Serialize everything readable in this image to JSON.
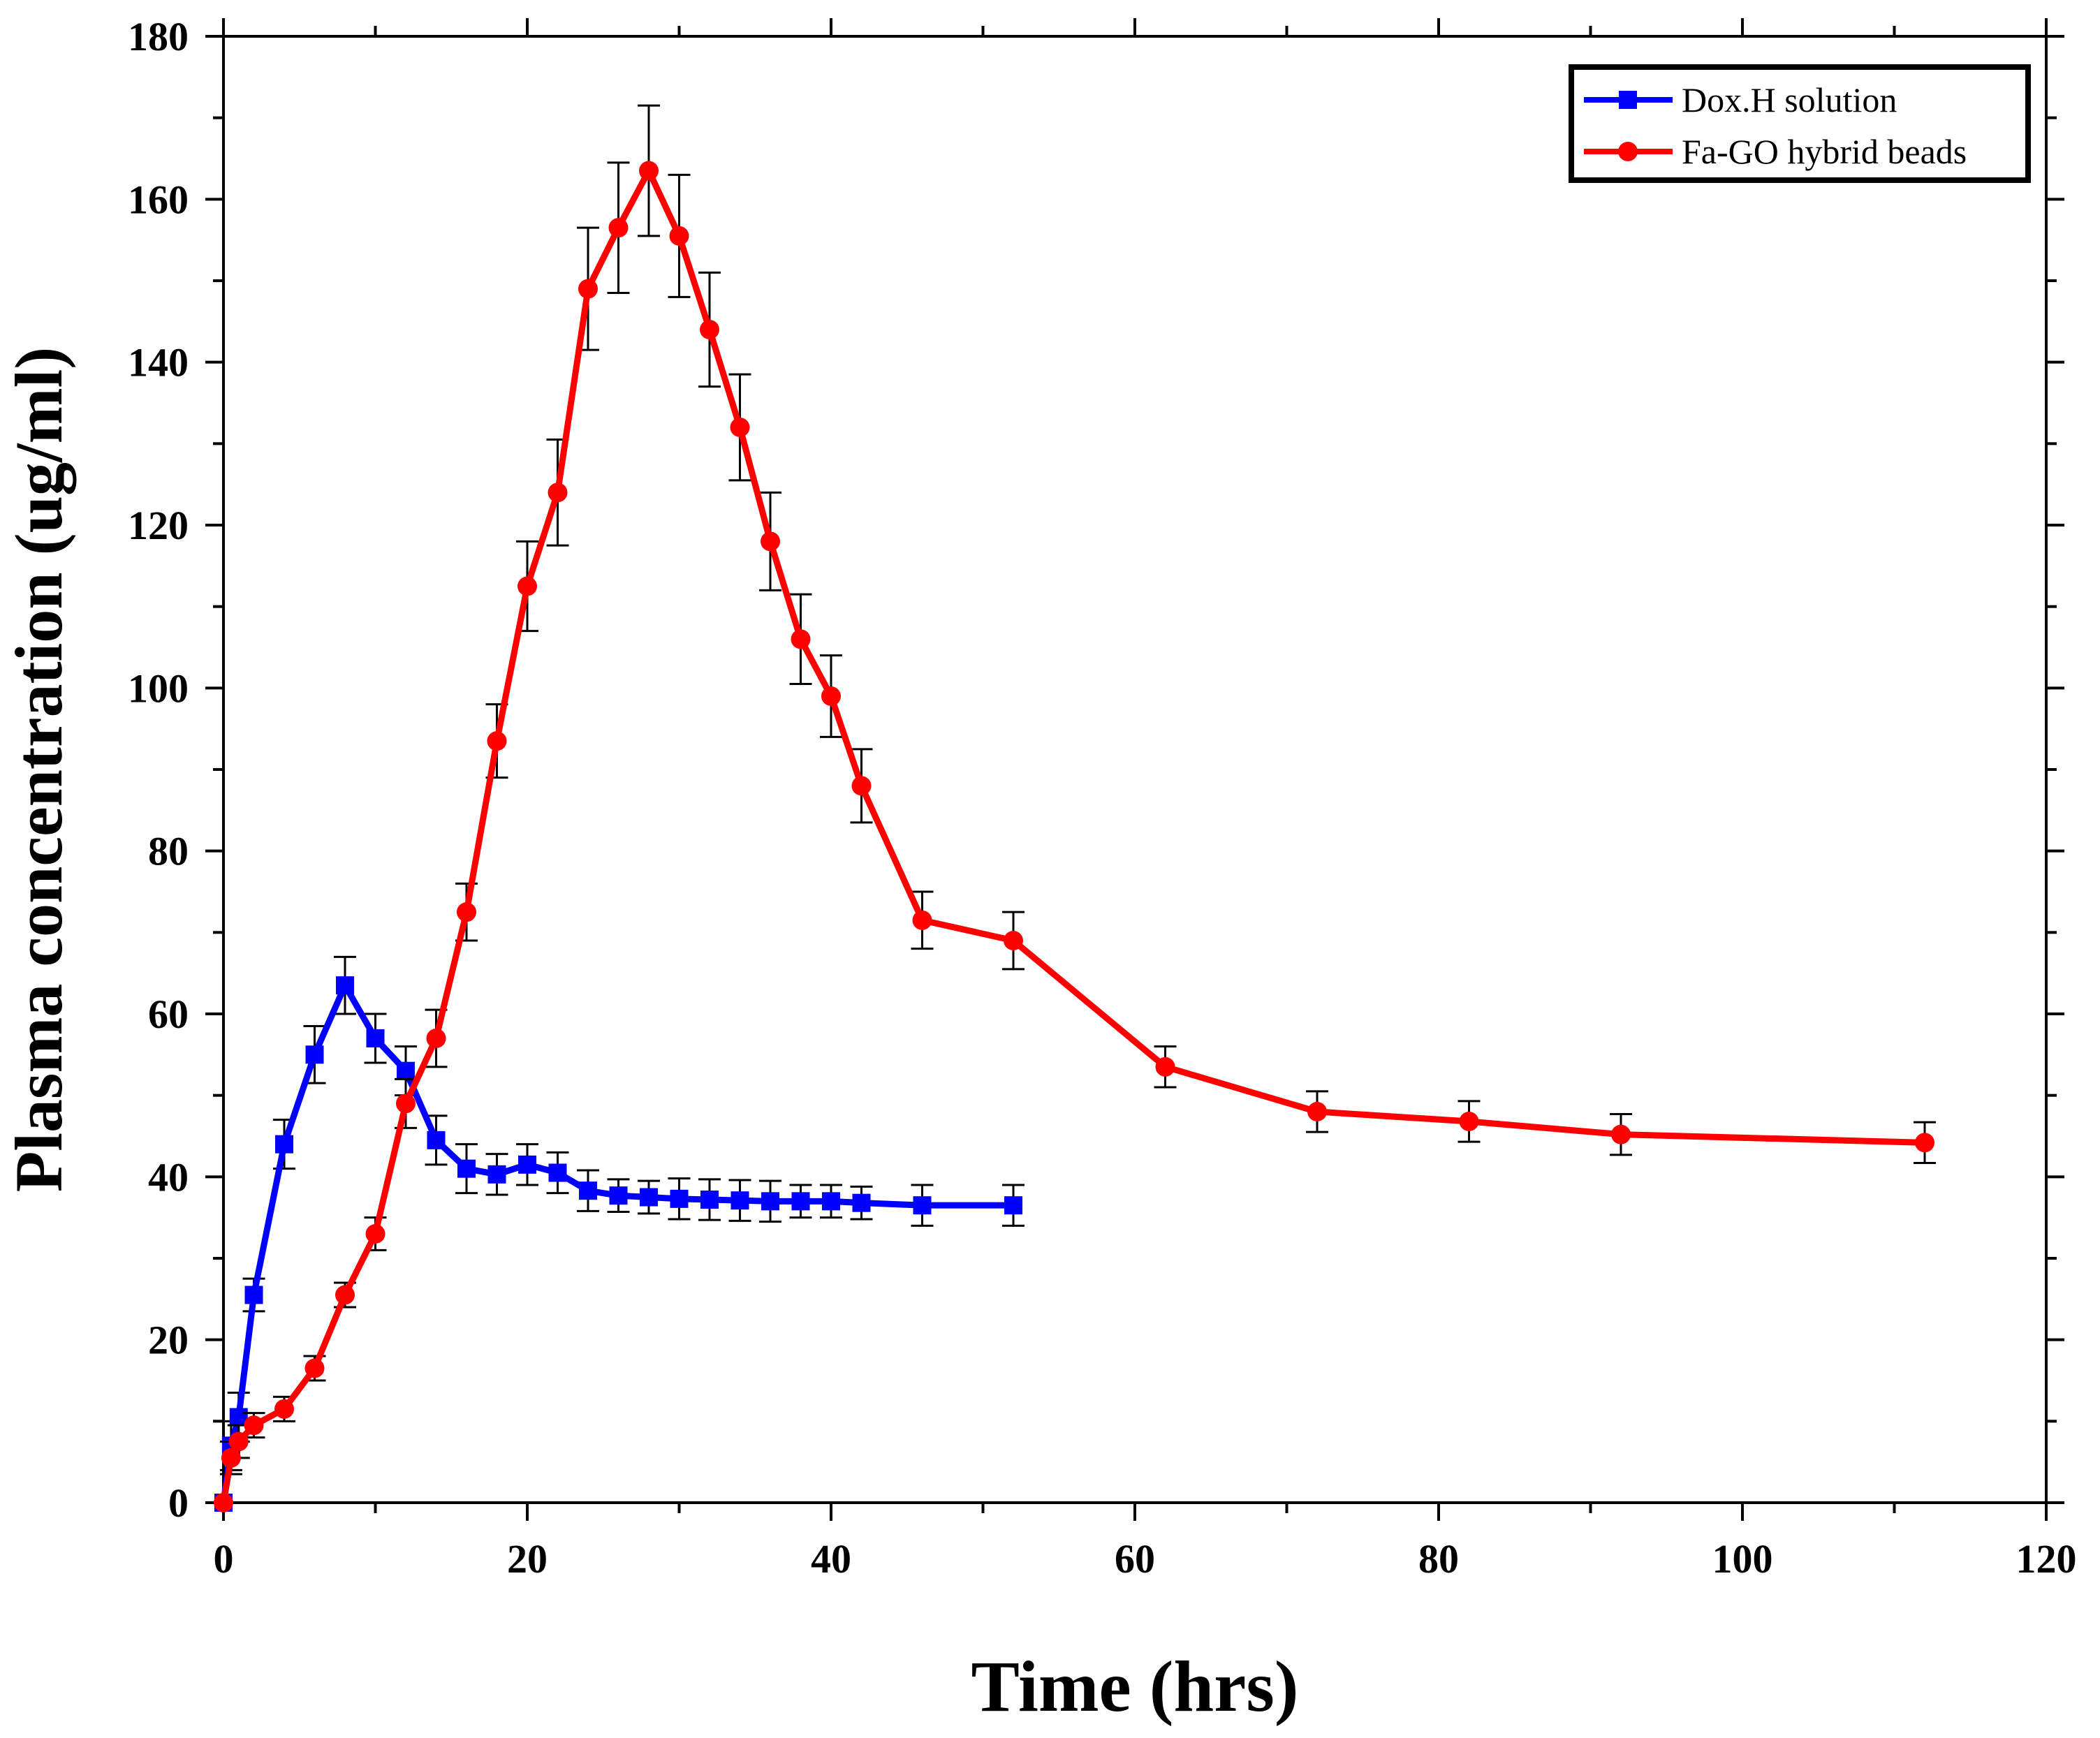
{
  "chart_data": {
    "type": "line",
    "xlabel": "Time (hrs)",
    "ylabel": "Plasma concentration (ug/ml)",
    "xlim": [
      0,
      120
    ],
    "ylim": [
      0,
      180
    ],
    "x_ticks": [
      0,
      20,
      40,
      60,
      80,
      100,
      120
    ],
    "y_ticks": [
      0,
      20,
      40,
      60,
      80,
      100,
      120,
      140,
      160,
      180
    ],
    "grid": false,
    "legend_position": "top-right",
    "series": [
      {
        "name": "Dox.H solution",
        "color": "#0000ff",
        "marker": "square",
        "x": [
          0,
          0.5,
          1,
          2,
          4,
          6,
          8,
          10,
          12,
          14,
          16,
          18,
          20,
          22,
          24,
          26,
          28,
          30,
          32,
          34,
          36,
          38,
          40,
          42,
          46,
          52
        ],
        "y": [
          0,
          7,
          10.5,
          25.5,
          44,
          55,
          63.5,
          57,
          53,
          44.5,
          41,
          40.3,
          41.5,
          40.5,
          38.3,
          37.7,
          37.5,
          37.3,
          37.2,
          37.1,
          37,
          37,
          37,
          36.8,
          36.5,
          36.5
        ],
        "error": [
          0,
          3,
          3,
          2,
          3,
          3.5,
          3.5,
          3,
          3,
          3,
          3,
          2.5,
          2.5,
          2.5,
          2.5,
          2,
          2,
          2.5,
          2.5,
          2.5,
          2.5,
          2,
          2,
          2,
          2.5,
          2.5
        ]
      },
      {
        "name": "Fa-GO hybrid beads",
        "color": "#ff0000",
        "marker": "circle",
        "x": [
          0,
          0.5,
          1,
          2,
          4,
          6,
          8,
          10,
          12,
          14,
          16,
          18,
          20,
          22,
          24,
          26,
          28,
          30,
          32,
          34,
          36,
          38,
          40,
          42,
          46,
          52,
          62,
          72,
          82,
          92,
          112
        ],
        "y": [
          0,
          5.5,
          7.5,
          9.5,
          11.5,
          16.5,
          25.5,
          33,
          49,
          57,
          72.5,
          93.5,
          112.5,
          124,
          149,
          156.5,
          163.5,
          155.5,
          144,
          132,
          118,
          106,
          99,
          88,
          71.5,
          69,
          53.5,
          48,
          46.8,
          45.2,
          44.2
        ],
        "error": [
          0,
          2,
          2,
          1.5,
          1.5,
          1.5,
          1.5,
          2,
          3,
          3.5,
          3.5,
          4.5,
          5.5,
          6.5,
          7.5,
          8,
          8,
          7.5,
          7,
          6.5,
          6,
          5.5,
          5,
          4.5,
          3.5,
          3.5,
          2.5,
          2.5,
          2.5,
          2.5,
          2.5
        ]
      }
    ]
  }
}
